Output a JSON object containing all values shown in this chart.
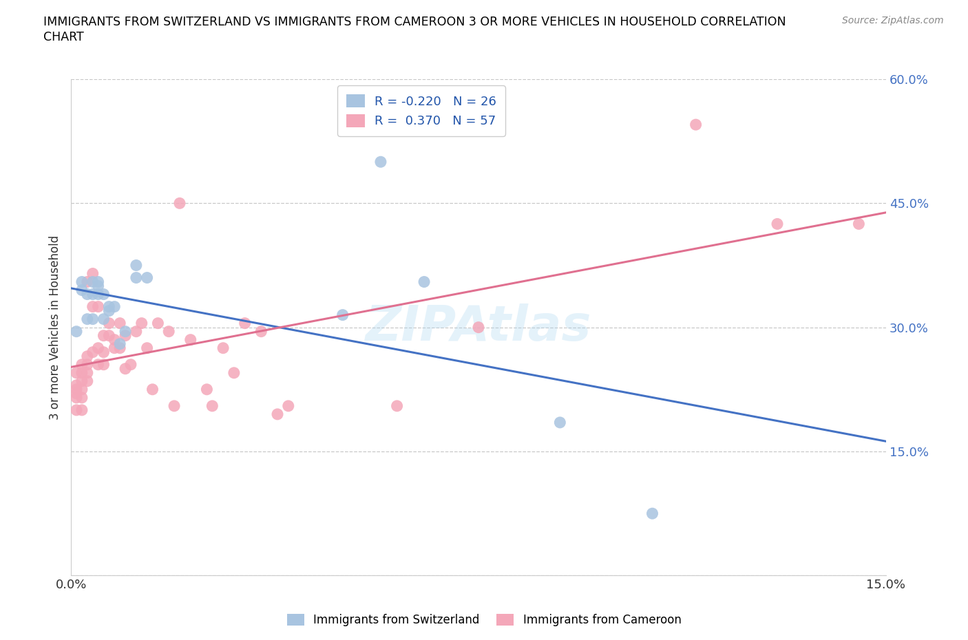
{
  "title": "IMMIGRANTS FROM SWITZERLAND VS IMMIGRANTS FROM CAMEROON 3 OR MORE VEHICLES IN HOUSEHOLD CORRELATION\nCHART",
  "source": "Source: ZipAtlas.com",
  "ylabel_label": "3 or more Vehicles in Household",
  "legend_label1": "Immigrants from Switzerland",
  "legend_label2": "Immigrants from Cameroon",
  "R1": -0.22,
  "N1": 26,
  "R2": 0.37,
  "N2": 57,
  "color_swiss": "#a8c4e0",
  "color_cameroon": "#f4a7b9",
  "line_color_swiss": "#4472c4",
  "line_color_cameroon": "#e07090",
  "xlim": [
    0.0,
    0.15
  ],
  "ylim": [
    0.0,
    0.6
  ],
  "xticks": [
    0.0,
    0.03,
    0.06,
    0.09,
    0.12,
    0.15
  ],
  "yticks": [
    0.0,
    0.15,
    0.3,
    0.45,
    0.6
  ],
  "grid_color": "#c8c8c8",
  "background_color": "#ffffff",
  "swiss_x": [
    0.001,
    0.002,
    0.002,
    0.003,
    0.003,
    0.004,
    0.004,
    0.004,
    0.005,
    0.005,
    0.005,
    0.006,
    0.006,
    0.007,
    0.007,
    0.008,
    0.009,
    0.01,
    0.012,
    0.012,
    0.014,
    0.05,
    0.057,
    0.065,
    0.09,
    0.107
  ],
  "swiss_y": [
    0.295,
    0.345,
    0.355,
    0.34,
    0.31,
    0.34,
    0.355,
    0.31,
    0.355,
    0.35,
    0.34,
    0.34,
    0.31,
    0.32,
    0.325,
    0.325,
    0.28,
    0.295,
    0.375,
    0.36,
    0.36,
    0.315,
    0.5,
    0.355,
    0.185,
    0.075
  ],
  "cameroon_x": [
    0.001,
    0.001,
    0.001,
    0.001,
    0.001,
    0.001,
    0.002,
    0.002,
    0.002,
    0.002,
    0.002,
    0.002,
    0.003,
    0.003,
    0.003,
    0.003,
    0.003,
    0.004,
    0.004,
    0.004,
    0.005,
    0.005,
    0.005,
    0.006,
    0.006,
    0.006,
    0.007,
    0.007,
    0.008,
    0.008,
    0.009,
    0.009,
    0.01,
    0.01,
    0.011,
    0.012,
    0.013,
    0.014,
    0.015,
    0.016,
    0.018,
    0.019,
    0.02,
    0.022,
    0.025,
    0.026,
    0.028,
    0.03,
    0.032,
    0.035,
    0.038,
    0.04,
    0.06,
    0.075,
    0.115,
    0.13,
    0.145
  ],
  "cameroon_y": [
    0.245,
    0.23,
    0.225,
    0.22,
    0.215,
    0.2,
    0.255,
    0.245,
    0.235,
    0.225,
    0.215,
    0.2,
    0.355,
    0.265,
    0.255,
    0.245,
    0.235,
    0.365,
    0.325,
    0.27,
    0.325,
    0.275,
    0.255,
    0.29,
    0.27,
    0.255,
    0.305,
    0.29,
    0.285,
    0.275,
    0.305,
    0.275,
    0.29,
    0.25,
    0.255,
    0.295,
    0.305,
    0.275,
    0.225,
    0.305,
    0.295,
    0.205,
    0.45,
    0.285,
    0.225,
    0.205,
    0.275,
    0.245,
    0.305,
    0.295,
    0.195,
    0.205,
    0.205,
    0.3,
    0.545,
    0.425,
    0.425
  ],
  "watermark_text": "ZIPAtlas",
  "watermark_color": "#a8d4f0",
  "watermark_alpha": 0.3,
  "watermark_fontsize": 52
}
